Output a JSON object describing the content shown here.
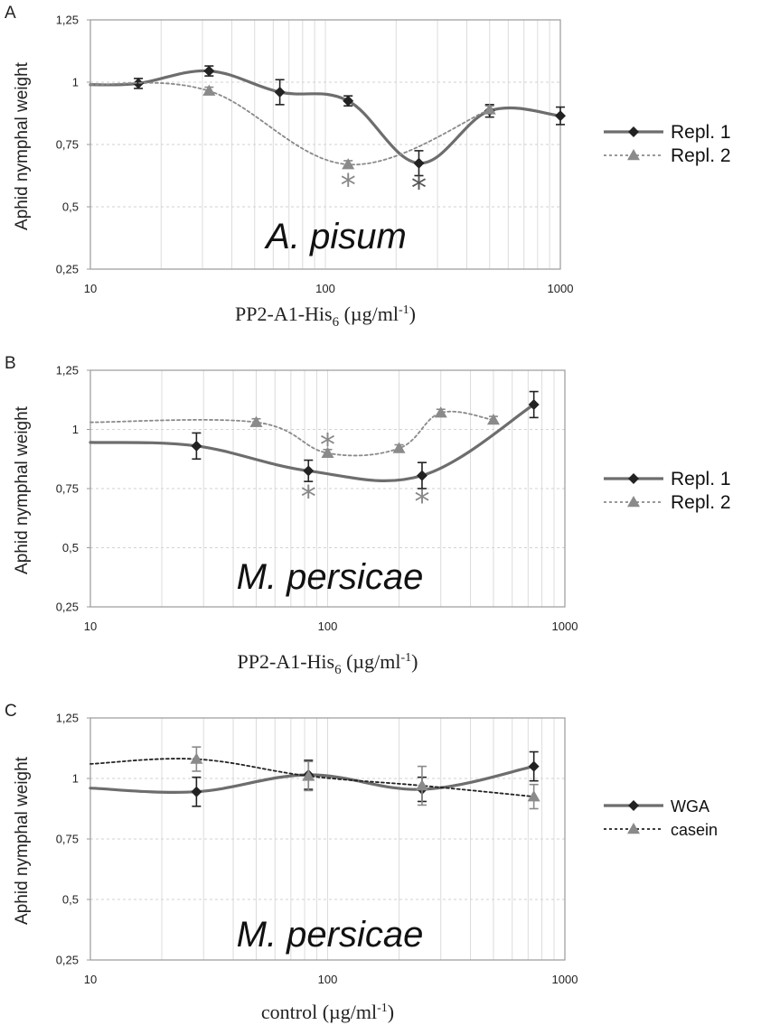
{
  "chart_data": [
    {
      "type": "line",
      "panel_label": "A",
      "annotation": "A. pisum",
      "ylabel": "Aphid nymphal weight",
      "xlabel": {
        "main": "PP2-A1-His",
        "sub": "6",
        "unit": " (µg/ml",
        "exp": "-1",
        "close": ")"
      },
      "xscale": "log",
      "xlim": [
        10,
        1000
      ],
      "ylim": [
        0.25,
        1.25
      ],
      "x_ticks": [
        10,
        100,
        1000
      ],
      "x_tick_labels": [
        "10",
        "100",
        "1000"
      ],
      "y_ticks": [
        0.25,
        0.5,
        0.75,
        1,
        1.25
      ],
      "y_tick_labels": [
        "0,25",
        "0,5",
        "0,75",
        "1",
        "1,25"
      ],
      "grid": true,
      "legend_position": "right",
      "series": [
        {
          "name": "Repl. 1",
          "style": "solid",
          "marker": "diamond",
          "color": "#6d6d6d",
          "marker_color": "#222222",
          "x": [
            10,
            16,
            32,
            64,
            125,
            250,
            500,
            1000
          ],
          "y": [
            0.99,
            0.995,
            1.045,
            0.96,
            0.925,
            0.675,
            0.885,
            0.865
          ],
          "err": [
            null,
            0.02,
            0.02,
            0.05,
            0.02,
            0.05,
            0.025,
            0.035
          ],
          "markers": [
            false,
            true,
            true,
            true,
            true,
            true,
            true,
            true
          ]
        },
        {
          "name": "Repl. 2",
          "style": "dotted",
          "marker": "triangle",
          "color": "#8a8a8a",
          "marker_color": "#8a8a8a",
          "x": [
            10,
            32,
            125,
            500
          ],
          "y": [
            0.99,
            0.965,
            0.67,
            0.89
          ],
          "err": [
            null,
            0.015,
            0.015,
            0.015
          ],
          "markers": [
            false,
            true,
            true,
            true
          ]
        }
      ],
      "significance": [
        {
          "symbol": "*",
          "x": 125,
          "y": 0.61,
          "color": "#888888"
        },
        {
          "symbol": "*",
          "x": 250,
          "y": 0.6,
          "color": "#555555"
        }
      ]
    },
    {
      "type": "line",
      "panel_label": "B",
      "annotation": "M. persicae",
      "ylabel": "Aphid nymphal weight",
      "xlabel": {
        "main": "PP2-A1-His",
        "sub": "6",
        "unit": " (µg/ml",
        "exp": "-1",
        "close": ")"
      },
      "xscale": "log",
      "xlim": [
        10,
        1000
      ],
      "ylim": [
        0.25,
        1.25
      ],
      "x_ticks": [
        10,
        100,
        1000
      ],
      "x_tick_labels": [
        "10",
        "100",
        "1000"
      ],
      "y_ticks": [
        0.25,
        0.5,
        0.75,
        1,
        1.25
      ],
      "y_tick_labels": [
        "0,25",
        "0,5",
        "0,75",
        "1",
        "1,25"
      ],
      "grid": true,
      "legend_position": "right",
      "series": [
        {
          "name": "Repl. 1",
          "style": "solid",
          "marker": "diamond",
          "color": "#6d6d6d",
          "marker_color": "#222222",
          "x": [
            10,
            28,
            83,
            250,
            740
          ],
          "y": [
            0.945,
            0.93,
            0.825,
            0.805,
            1.105
          ],
          "err": [
            null,
            0.055,
            0.045,
            0.055,
            0.055
          ],
          "markers": [
            false,
            true,
            true,
            true,
            true
          ]
        },
        {
          "name": "Repl. 2",
          "style": "dotted",
          "marker": "triangle",
          "color": "#8a8a8a",
          "marker_color": "#8a8a8a",
          "x": [
            10,
            50,
            100,
            200,
            300,
            500
          ],
          "y": [
            1.03,
            1.03,
            0.9,
            0.92,
            1.07,
            1.04
          ],
          "err": [
            null,
            0.015,
            0.015,
            0.015,
            0.015,
            0.015
          ],
          "markers": [
            false,
            true,
            true,
            true,
            true,
            true
          ]
        }
      ],
      "significance": [
        {
          "symbol": "*",
          "x": 100,
          "y": 0.96,
          "color": "#888888"
        },
        {
          "symbol": "*",
          "x": 83,
          "y": 0.74,
          "color": "#888888"
        },
        {
          "symbol": "*",
          "x": 250,
          "y": 0.72,
          "color": "#888888"
        }
      ]
    },
    {
      "type": "line",
      "panel_label": "C",
      "annotation": "M. persicae",
      "ylabel": "Aphid nymphal weight",
      "xlabel": {
        "main": "control",
        "sub": "",
        "unit": " (µg/ml",
        "exp": "-1",
        "close": ")"
      },
      "xscale": "log",
      "xlim": [
        10,
        1000
      ],
      "ylim": [
        0.25,
        1.25
      ],
      "x_ticks": [
        10,
        100,
        1000
      ],
      "x_tick_labels": [
        "10",
        "100",
        "1000"
      ],
      "y_ticks": [
        0.25,
        0.5,
        0.75,
        1,
        1.25
      ],
      "y_tick_labels": [
        "0,25",
        "0,5",
        "0,75",
        "1",
        "1,25"
      ],
      "grid": true,
      "legend_position": "right",
      "series": [
        {
          "name": "WGA",
          "style": "solid",
          "marker": "diamond",
          "color": "#6d6d6d",
          "marker_color": "#222222",
          "x": [
            10,
            28,
            83,
            250,
            740
          ],
          "y": [
            0.96,
            0.945,
            1.015,
            0.955,
            1.05
          ],
          "err": [
            null,
            0.06,
            0.06,
            0.05,
            0.06
          ],
          "markers": [
            false,
            true,
            true,
            true,
            true
          ]
        },
        {
          "name": "casein",
          "style": "dotted",
          "marker": "triangle",
          "color": "#222222",
          "marker_color": "#8a8a8a",
          "x": [
            10,
            28,
            83,
            250,
            740
          ],
          "y": [
            1.06,
            1.08,
            1.01,
            0.97,
            0.925
          ],
          "err": [
            null,
            0.05,
            0.06,
            0.08,
            0.05
          ],
          "markers": [
            false,
            true,
            true,
            true,
            true
          ]
        }
      ],
      "significance": []
    }
  ]
}
